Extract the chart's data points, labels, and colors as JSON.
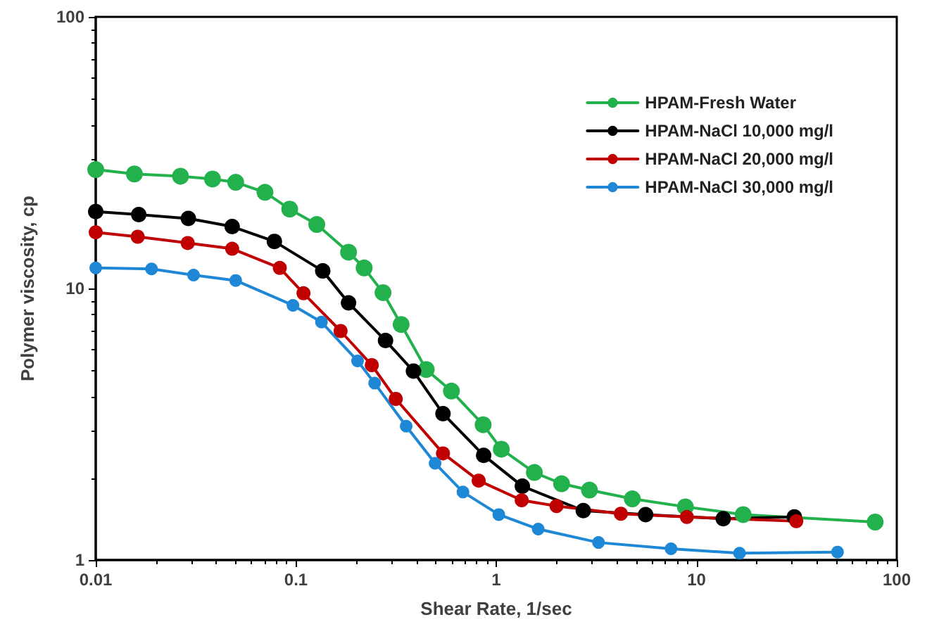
{
  "chart_data": {
    "type": "line",
    "xlabel": "Shear Rate, 1/sec",
    "ylabel": "Polymer viscosity, cp",
    "log": "xy",
    "xlim": [
      0.01,
      100
    ],
    "xticks": [
      0.01,
      0.1,
      1,
      10,
      100
    ],
    "ylim": [
      1,
      100
    ],
    "yticks": [
      1,
      10,
      100
    ],
    "grid": false,
    "legend": "top right",
    "marker": "circle",
    "line_style": "solid",
    "series": [
      {
        "name": "HPAM-Fresh Water",
        "color": "#22b14c",
        "x": [
          0.01,
          0.0156,
          0.0265,
          0.0383,
          0.05,
          0.07,
          0.093,
          0.127,
          0.183,
          0.219,
          0.272,
          0.335,
          0.447,
          0.597,
          0.86,
          1.06,
          1.55,
          2.12,
          2.92,
          4.78,
          8.8,
          17.1,
          78
        ],
        "values": [
          27.4,
          26.4,
          25.9,
          25.3,
          24.6,
          22.6,
          19.6,
          17.2,
          13.6,
          11.9,
          9.65,
          7.37,
          5.03,
          4.19,
          3.15,
          2.56,
          2.1,
          1.91,
          1.81,
          1.68,
          1.57,
          1.47,
          1.38
        ]
      },
      {
        "name": "HPAM-NaCl 10,000 mg/l",
        "color": "#000000",
        "x": [
          0.01,
          0.0164,
          0.029,
          0.048,
          0.078,
          0.136,
          0.183,
          0.28,
          0.386,
          0.542,
          0.865,
          1.35,
          2.72,
          5.57,
          13.6,
          30.8
        ],
        "values": [
          19.2,
          18.7,
          18.1,
          16.9,
          14.9,
          11.6,
          8.85,
          6.43,
          4.96,
          3.46,
          2.43,
          1.87,
          1.52,
          1.47,
          1.42,
          1.44
        ]
      },
      {
        "name": "HPAM-NaCl 20,000 mg/l",
        "color": "#c00000",
        "x": [
          0.01,
          0.0162,
          0.0288,
          0.048,
          0.083,
          0.109,
          0.167,
          0.239,
          0.315,
          0.542,
          0.817,
          1.34,
          2.0,
          4.19,
          8.95,
          31.5
        ],
        "values": [
          16.1,
          15.5,
          14.7,
          14.0,
          11.9,
          9.6,
          6.97,
          5.22,
          3.92,
          2.47,
          1.96,
          1.66,
          1.58,
          1.48,
          1.44,
          1.39
        ]
      },
      {
        "name": "HPAM-NaCl 30,000 mg/l",
        "color": "#1f88d6",
        "x": [
          0.01,
          0.019,
          0.0308,
          0.05,
          0.0966,
          0.134,
          0.203,
          0.247,
          0.355,
          0.495,
          0.682,
          1.03,
          1.62,
          3.24,
          7.46,
          16.4,
          50.6
        ],
        "values": [
          11.9,
          11.8,
          11.2,
          10.7,
          8.67,
          7.52,
          5.41,
          4.48,
          3.11,
          2.27,
          1.78,
          1.47,
          1.3,
          1.16,
          1.1,
          1.06,
          1.07
        ]
      }
    ]
  }
}
